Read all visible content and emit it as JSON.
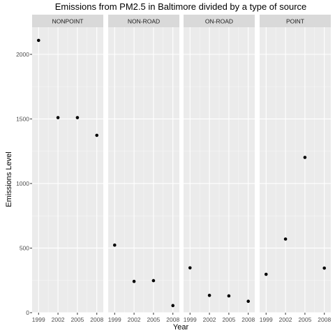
{
  "chart_data": {
    "type": "scatter",
    "title": "Emissions from PM2.5 in Baltimore divided by a type of source",
    "xlabel": "Year",
    "ylabel": "Emissions Level",
    "x_ticks": [
      1999,
      2002,
      2005,
      2008
    ],
    "y_ticks": [
      0,
      500,
      1000,
      1500,
      2000
    ],
    "xlim": [
      1998,
      2009
    ],
    "ylim": [
      0,
      2210
    ],
    "grid": true,
    "colors": {
      "panel_bg": "#ebebeb",
      "strip_bg": "#d9d9d9",
      "grid_major": "#ffffff",
      "point": "#000000"
    },
    "panels": [
      {
        "name": "NONPOINT",
        "x": [
          1999,
          2002,
          2005,
          2008
        ],
        "y": [
          2108,
          1510,
          1510,
          1373
        ]
      },
      {
        "name": "NON-ROAD",
        "x": [
          1999,
          2002,
          2005,
          2008
        ],
        "y": [
          523,
          242,
          248,
          55
        ]
      },
      {
        "name": "ON-ROAD",
        "x": [
          1999,
          2002,
          2005,
          2008
        ],
        "y": [
          347,
          134,
          130,
          88
        ]
      },
      {
        "name": "POINT",
        "x": [
          1999,
          2002,
          2005,
          2008
        ],
        "y": [
          297,
          570,
          1202,
          345
        ]
      }
    ]
  }
}
